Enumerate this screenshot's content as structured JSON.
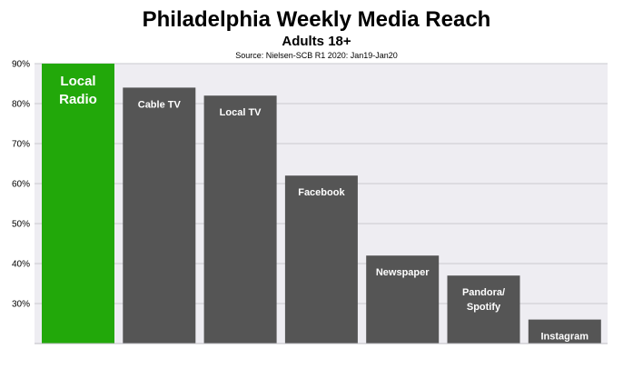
{
  "chart_data": {
    "type": "bar",
    "title": "Philadelphia Weekly Media Reach",
    "subtitle": "Adults 18+",
    "source": "Source: Nielsen-SCB R1 2020: Jan19-Jan20",
    "categories": [
      "Local Radio",
      "Cable TV",
      "Local TV",
      "Facebook",
      "Newspaper",
      "Pandora/ Spotify",
      "Instagram"
    ],
    "label_lines": [
      [
        "Local",
        "Radio"
      ],
      [
        "Cable TV"
      ],
      [
        "Local TV"
      ],
      [
        "Facebook"
      ],
      [
        "Newspaper"
      ],
      [
        "Pandora/",
        "Spotify"
      ],
      [
        "Instagram"
      ]
    ],
    "values": [
      90,
      84,
      82,
      62,
      42,
      37,
      26
    ],
    "highlight_index": 0,
    "ylim": [
      20,
      90
    ],
    "yticks": [
      30,
      40,
      50,
      60,
      70,
      80,
      90
    ],
    "ytick_labels": [
      "30%",
      "40%",
      "50%",
      "60%",
      "70%",
      "80%",
      "90%"
    ],
    "grid": true,
    "xlabel": "",
    "ylabel": "",
    "colors": {
      "highlight_bar": "#22a80a",
      "bar": "#555555",
      "plot_background": "#eeedf2",
      "grid": "#c9c9cf",
      "bar_label": "#ffffff"
    }
  }
}
